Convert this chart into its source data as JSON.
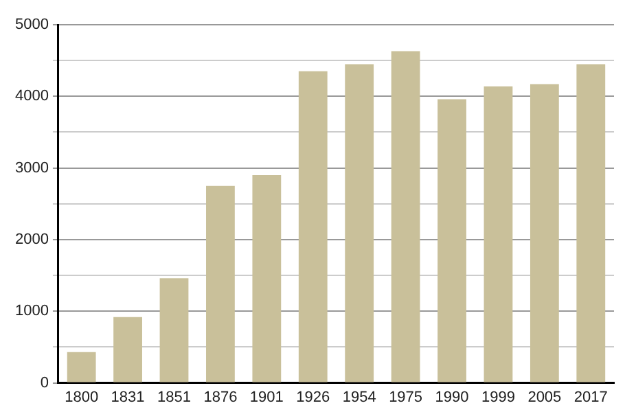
{
  "chart_data": {
    "type": "bar",
    "categories": [
      "1800",
      "1831",
      "1851",
      "1876",
      "1901",
      "1926",
      "1954",
      "1975",
      "1990",
      "1999",
      "2005",
      "2017"
    ],
    "values": [
      430,
      920,
      1460,
      2750,
      2900,
      4350,
      4450,
      4630,
      3960,
      4140,
      4170,
      4450
    ],
    "color": "#c9c09a",
    "ylim": [
      0,
      5000
    ],
    "yticks": [
      0,
      {
        "value": 500,
        "label": null
      },
      1000,
      {
        "value": 1500,
        "label": null
      },
      2000,
      {
        "value": 2500,
        "label": null
      },
      3000,
      {
        "value": 3500,
        "label": null
      },
      4000,
      {
        "value": 4500,
        "label": null
      },
      5000
    ],
    "grid": "y",
    "legend": false
  }
}
